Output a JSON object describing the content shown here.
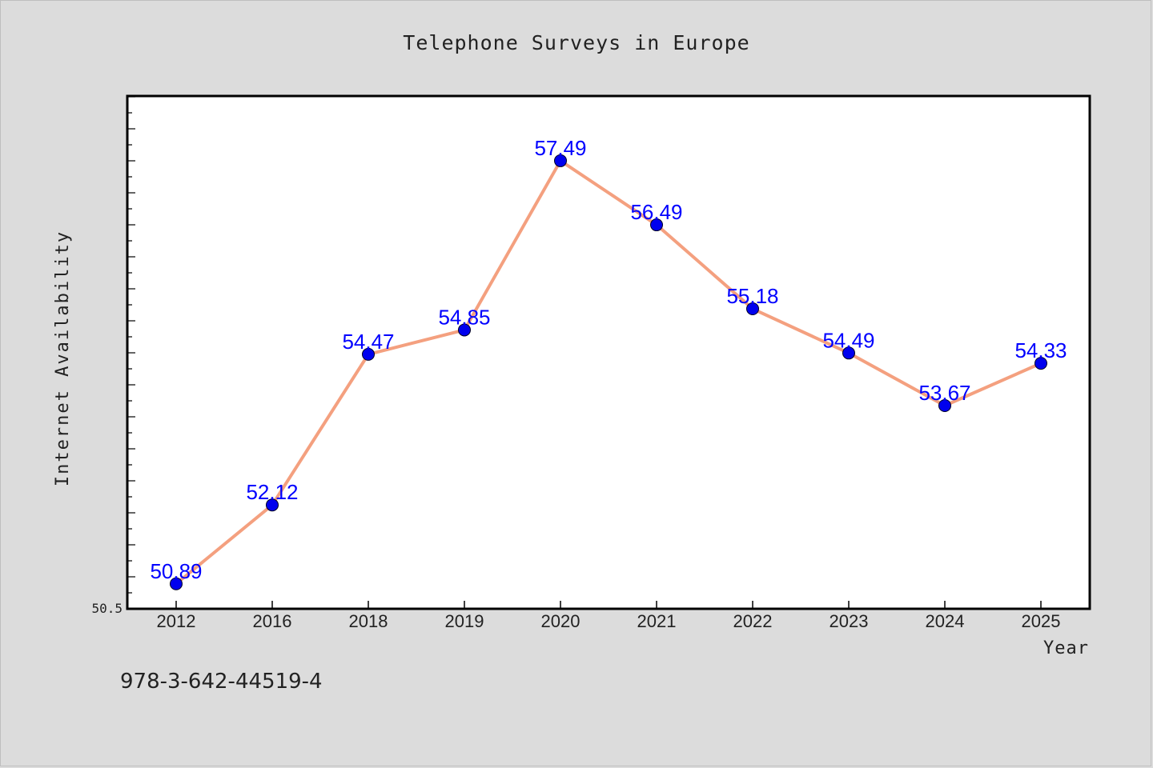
{
  "chart_data": {
    "type": "line",
    "title": "Telephone Surveys in Europe",
    "xlabel": "Year",
    "ylabel": "Internet Availability",
    "categories": [
      "2012",
      "2016",
      "2018",
      "2019",
      "2020",
      "2021",
      "2022",
      "2023",
      "2024",
      "2025"
    ],
    "series": [
      {
        "values": [
          50.89,
          52.12,
          54.47,
          54.85,
          57.49,
          56.49,
          55.18,
          54.49,
          53.67,
          54.33
        ],
        "data_labels": [
          "50.89",
          "52.12",
          "54.47",
          "54.85",
          "57.49",
          "56.49",
          "55.18",
          "54.49",
          "53.67",
          "54.33"
        ]
      }
    ],
    "ylim": [
      50.5,
      58.5
    ],
    "ytick_labels": [
      {
        "value": 50.5,
        "label": "50.5"
      }
    ],
    "grid": false,
    "legend": "none",
    "colors": {
      "line": "#f4a07f",
      "marker": "#0000ee",
      "data_label": "#0000ff",
      "plot_background": "#ffffff",
      "figure_background": "#dcdcdc"
    }
  },
  "footer": {
    "isbn": "978-3-642-44519-4"
  }
}
